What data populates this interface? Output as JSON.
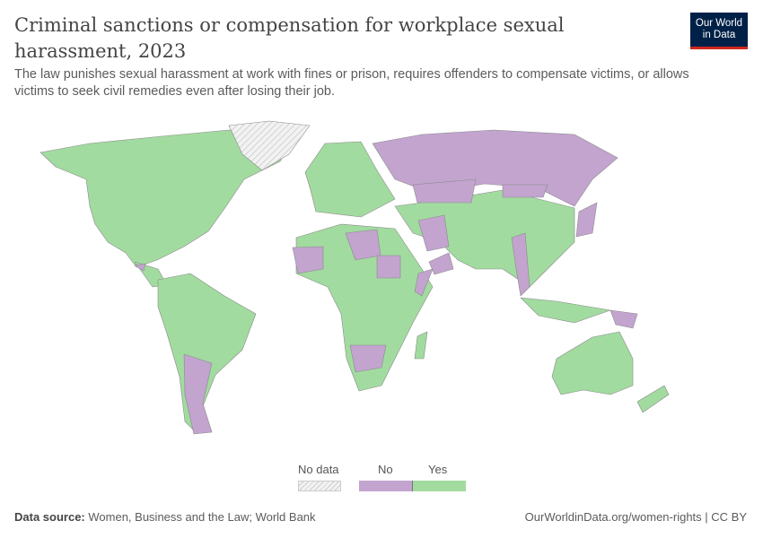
{
  "header": {
    "title": "Criminal sanctions or compensation for workplace sexual harassment, 2023",
    "subtitle": "The law punishes sexual harassment at work with fines or prison, requires offenders to compensate victims, or allows victims to seek civil remedies even after losing their job.",
    "logo_line1": "Our World",
    "logo_line2": "in Data"
  },
  "legend": {
    "items": [
      {
        "label": "No data",
        "color": "hatched"
      },
      {
        "label": "No",
        "color": "#c2a4cf"
      },
      {
        "label": "Yes",
        "color": "#a2dba0"
      }
    ]
  },
  "colors": {
    "yes": "#a2dba0",
    "no": "#c2a4cf",
    "border": "#8a8a8a",
    "no_data": "#e8e8e8"
  },
  "footer": {
    "source_label": "Data source:",
    "source": "Women, Business and the Law; World Bank",
    "url": "OurWorldinData.org/women-rights | CC BY"
  }
}
